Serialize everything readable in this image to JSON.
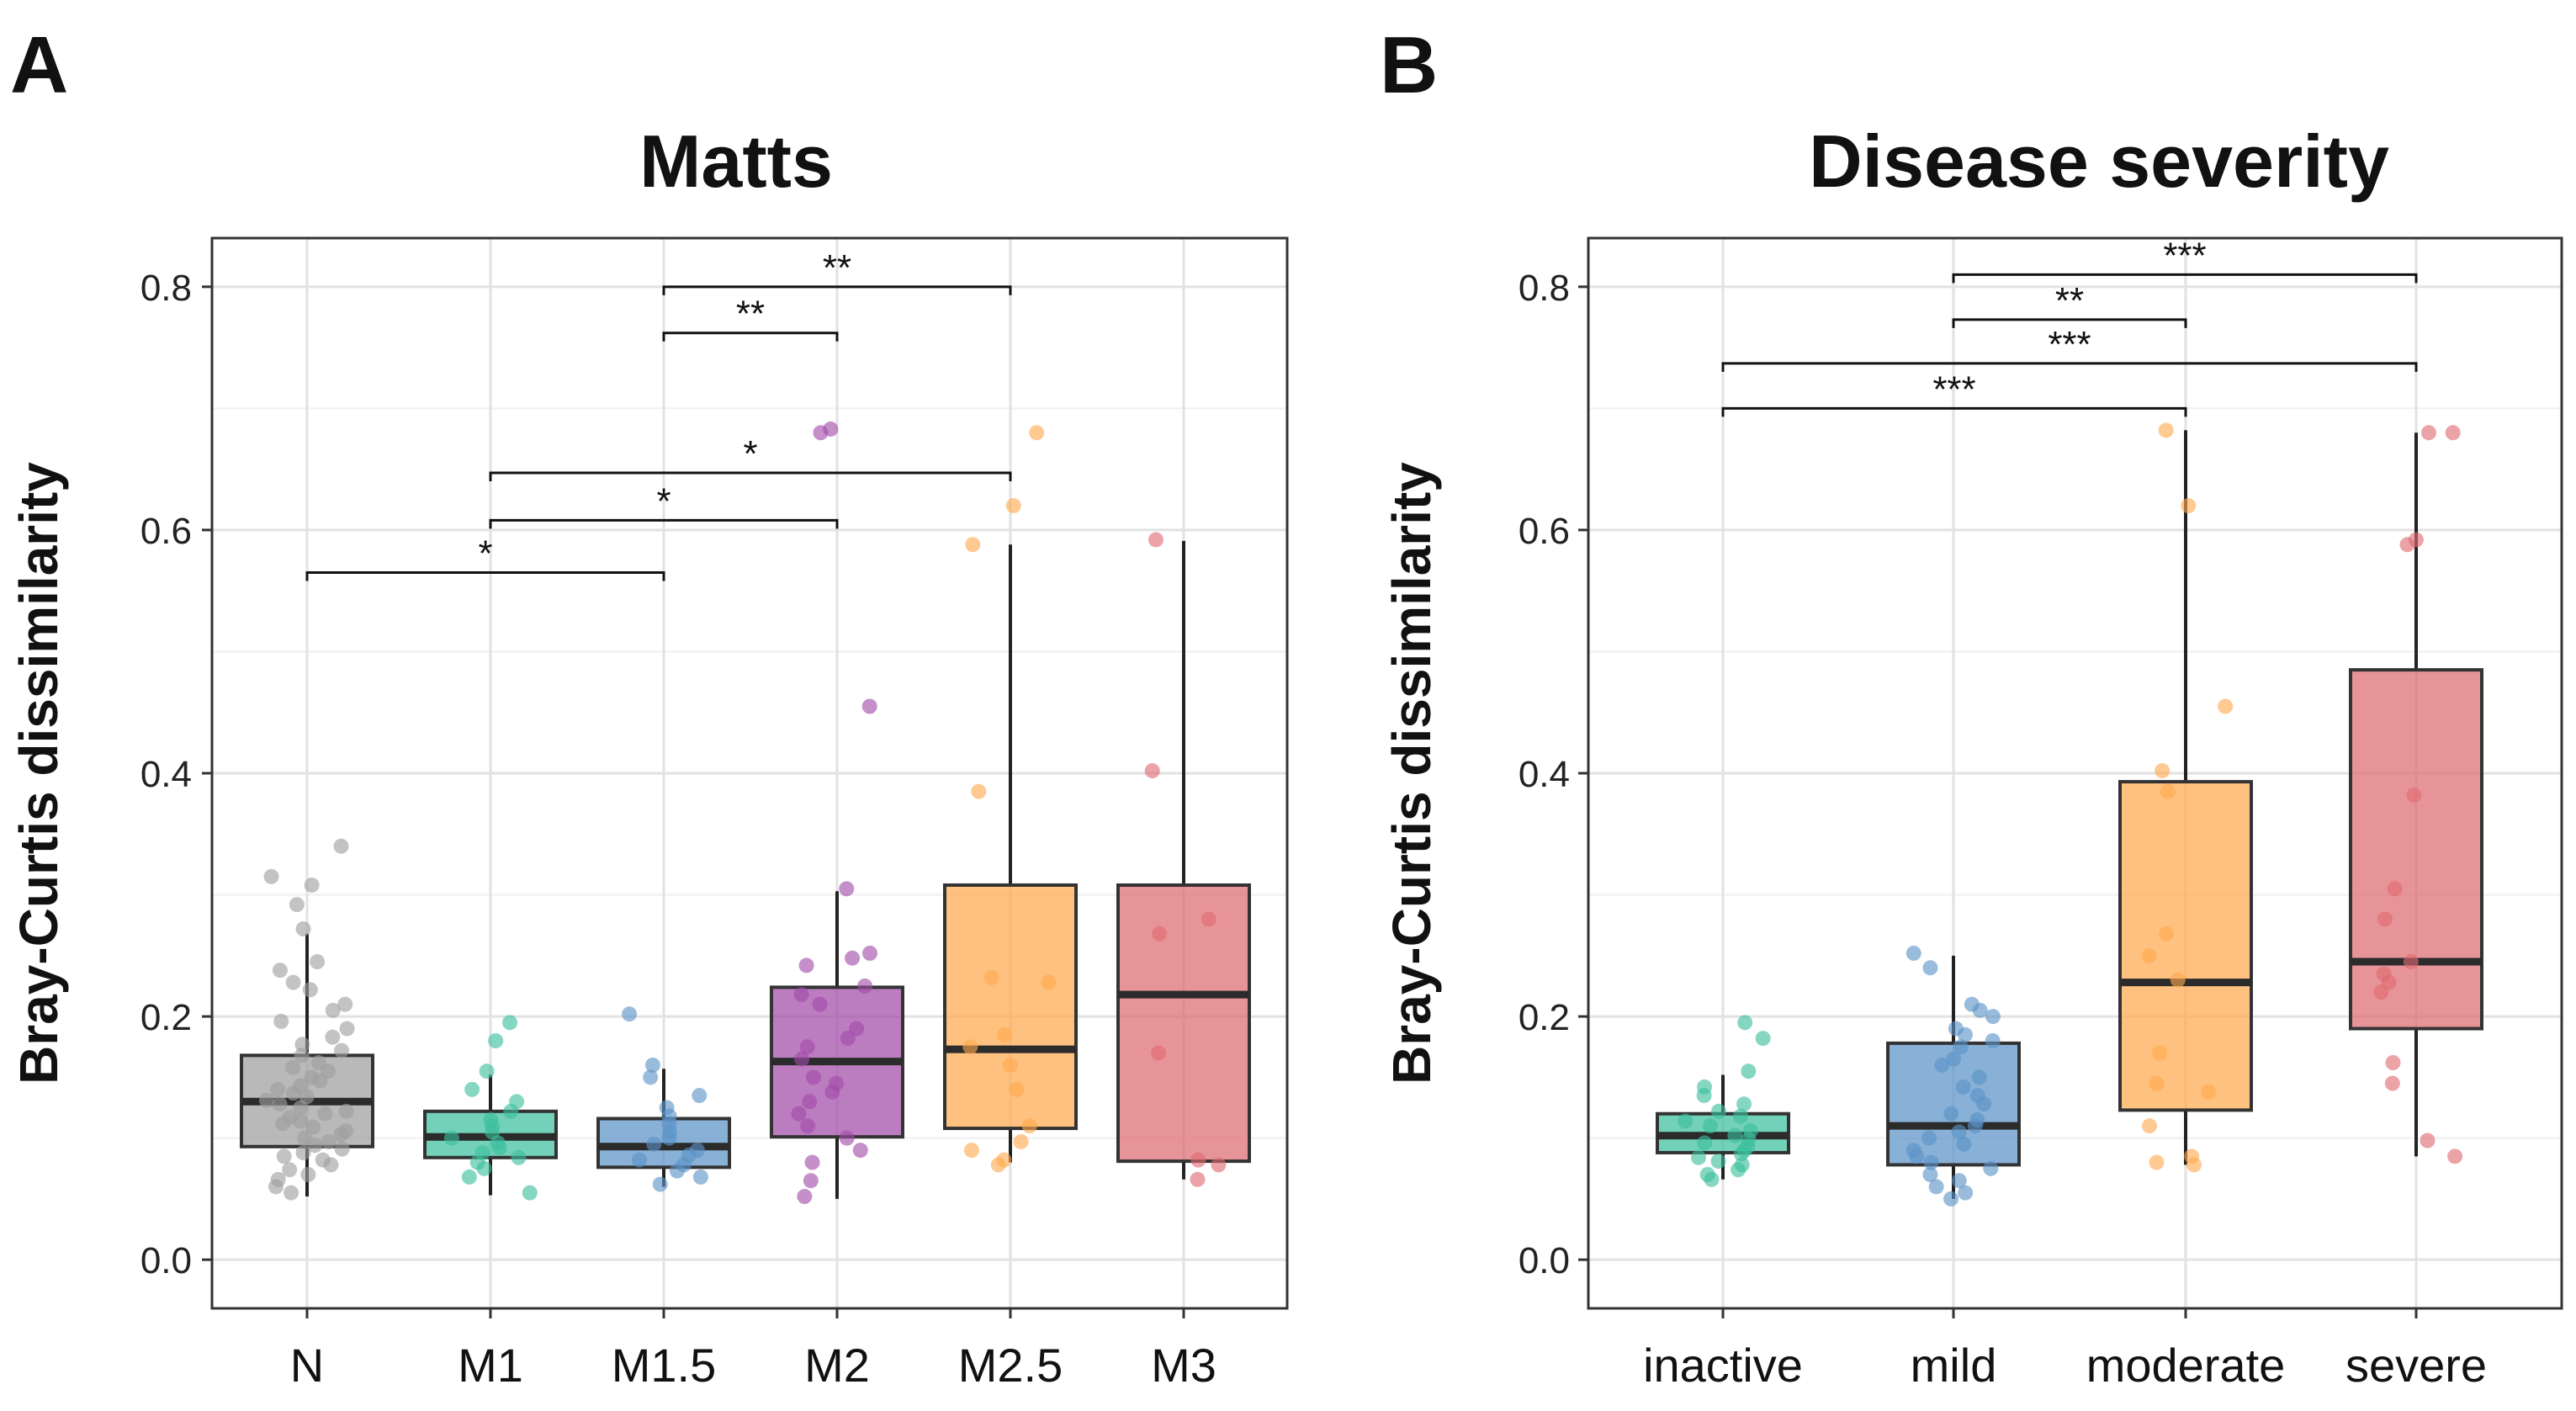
{
  "figure": {
    "description": "Two-panel boxplot figure of Bray-Curtis dissimilarity"
  },
  "chart_data": [
    {
      "panel_label": "A",
      "type": "box",
      "title": "Matts",
      "xlabel": "",
      "ylabel": "Bray-Curtis dissimilarity",
      "ylim": [
        -0.04,
        0.84
      ],
      "yticks": [
        0.0,
        0.2,
        0.4,
        0.6,
        0.8
      ],
      "ytick_labels": [
        "0.0",
        "0.2",
        "0.4",
        "0.6",
        "0.8"
      ],
      "grid": true,
      "categories": [
        "N",
        "M1",
        "M1.5",
        "M2",
        "M2.5",
        "M3"
      ],
      "boxes": [
        {
          "category": "N",
          "color": "#9e9e9e",
          "q1": 0.093,
          "median": 0.13,
          "q3": 0.168,
          "whisker_low": 0.052,
          "whisker_high": 0.268
        },
        {
          "category": "M1",
          "color": "#3bbf9c",
          "q1": 0.084,
          "median": 0.101,
          "q3": 0.122,
          "whisker_low": 0.053,
          "whisker_high": 0.152
        },
        {
          "category": "M1.5",
          "color": "#5b93c7",
          "q1": 0.076,
          "median": 0.093,
          "q3": 0.116,
          "whisker_low": 0.06,
          "whisker_high": 0.157
        },
        {
          "category": "M2",
          "color": "#a24aa8",
          "q1": 0.101,
          "median": 0.163,
          "q3": 0.224,
          "whisker_low": 0.05,
          "whisker_high": 0.303
        },
        {
          "category": "M2.5",
          "color": "#ffa94d",
          "q1": 0.108,
          "median": 0.173,
          "q3": 0.308,
          "whisker_low": 0.08,
          "whisker_high": 0.588
        },
        {
          "category": "M3",
          "color": "#de6b71",
          "q1": 0.081,
          "median": 0.218,
          "q3": 0.308,
          "whisker_low": 0.066,
          "whisker_high": 0.591
        }
      ],
      "points": [
        {
          "category": "N",
          "values": [
            0.34,
            0.315,
            0.308,
            0.292,
            0.272,
            0.245,
            0.238,
            0.228,
            0.222,
            0.21,
            0.205,
            0.196,
            0.19,
            0.183,
            0.177,
            0.172,
            0.168,
            0.162,
            0.158,
            0.155,
            0.15,
            0.147,
            0.143,
            0.14,
            0.137,
            0.134,
            0.131,
            0.128,
            0.125,
            0.122,
            0.12,
            0.117,
            0.114,
            0.112,
            0.109,
            0.106,
            0.103,
            0.1,
            0.097,
            0.094,
            0.091,
            0.088,
            0.085,
            0.082,
            0.078,
            0.074,
            0.07,
            0.066,
            0.06,
            0.055
          ]
        },
        {
          "category": "M1",
          "values": [
            0.195,
            0.18,
            0.155,
            0.14,
            0.13,
            0.122,
            0.115,
            0.11,
            0.105,
            0.1,
            0.096,
            0.092,
            0.088,
            0.084,
            0.08,
            0.075,
            0.068,
            0.055
          ]
        },
        {
          "category": "M1.5",
          "values": [
            0.202,
            0.16,
            0.15,
            0.135,
            0.125,
            0.118,
            0.112,
            0.105,
            0.1,
            0.095,
            0.09,
            0.086,
            0.082,
            0.078,
            0.073,
            0.068,
            0.062
          ]
        },
        {
          "category": "M2",
          "values": [
            0.683,
            0.68,
            0.455,
            0.305,
            0.252,
            0.248,
            0.242,
            0.225,
            0.218,
            0.21,
            0.19,
            0.182,
            0.175,
            0.165,
            0.15,
            0.145,
            0.138,
            0.13,
            0.12,
            0.11,
            0.1,
            0.09,
            0.08,
            0.065,
            0.052
          ]
        },
        {
          "category": "M2.5",
          "values": [
            0.68,
            0.62,
            0.588,
            0.385,
            0.232,
            0.228,
            0.185,
            0.175,
            0.16,
            0.14,
            0.11,
            0.097,
            0.09,
            0.082,
            0.078
          ]
        },
        {
          "category": "M3",
          "values": [
            0.592,
            0.402,
            0.28,
            0.268,
            0.17,
            0.082,
            0.078,
            0.066
          ]
        }
      ],
      "significance": [
        {
          "from": "N",
          "to": "M1.5",
          "y": 0.565,
          "label": "*"
        },
        {
          "from": "M1",
          "to": "M2",
          "y": 0.608,
          "label": "*"
        },
        {
          "from": "M1",
          "to": "M2.5",
          "y": 0.647,
          "label": "*"
        },
        {
          "from": "M1.5",
          "to": "M2",
          "y": 0.762,
          "label": "**"
        },
        {
          "from": "M1.5",
          "to": "M2.5",
          "y": 0.8,
          "label": "**"
        }
      ]
    },
    {
      "panel_label": "B",
      "type": "box",
      "title": "Disease severity",
      "xlabel": "",
      "ylabel": "Bray-Curtis dissimilarity",
      "ylim": [
        -0.04,
        0.84
      ],
      "yticks": [
        0.0,
        0.2,
        0.4,
        0.6,
        0.8
      ],
      "ytick_labels": [
        "0.0",
        "0.2",
        "0.4",
        "0.6",
        "0.8"
      ],
      "grid": true,
      "categories": [
        "inactive",
        "mild",
        "moderate",
        "severe"
      ],
      "boxes": [
        {
          "category": "inactive",
          "color": "#3bbf9c",
          "q1": 0.088,
          "median": 0.102,
          "q3": 0.12,
          "whisker_low": 0.066,
          "whisker_high": 0.152
        },
        {
          "category": "mild",
          "color": "#5b93c7",
          "q1": 0.078,
          "median": 0.11,
          "q3": 0.178,
          "whisker_low": 0.05,
          "whisker_high": 0.25
        },
        {
          "category": "moderate",
          "color": "#ffa94d",
          "q1": 0.123,
          "median": 0.228,
          "q3": 0.393,
          "whisker_low": 0.078,
          "whisker_high": 0.682
        },
        {
          "category": "severe",
          "color": "#de6b71",
          "q1": 0.19,
          "median": 0.245,
          "q3": 0.485,
          "whisker_low": 0.085,
          "whisker_high": 0.68
        }
      ],
      "points": [
        {
          "category": "inactive",
          "values": [
            0.195,
            0.182,
            0.155,
            0.142,
            0.135,
            0.128,
            0.122,
            0.118,
            0.114,
            0.11,
            0.106,
            0.102,
            0.099,
            0.096,
            0.093,
            0.09,
            0.087,
            0.084,
            0.081,
            0.078,
            0.074,
            0.07,
            0.066
          ]
        },
        {
          "category": "mild",
          "values": [
            0.252,
            0.24,
            0.21,
            0.205,
            0.2,
            0.19,
            0.185,
            0.18,
            0.175,
            0.165,
            0.16,
            0.15,
            0.142,
            0.135,
            0.128,
            0.12,
            0.115,
            0.11,
            0.105,
            0.1,
            0.095,
            0.09,
            0.085,
            0.08,
            0.075,
            0.07,
            0.065,
            0.06,
            0.055,
            0.05
          ]
        },
        {
          "category": "moderate",
          "values": [
            0.682,
            0.62,
            0.455,
            0.402,
            0.385,
            0.268,
            0.25,
            0.23,
            0.17,
            0.145,
            0.138,
            0.11,
            0.085,
            0.08,
            0.078
          ]
        },
        {
          "category": "severe",
          "values": [
            0.68,
            0.68,
            0.592,
            0.588,
            0.382,
            0.305,
            0.28,
            0.245,
            0.235,
            0.228,
            0.22,
            0.162,
            0.145,
            0.098,
            0.085
          ]
        }
      ],
      "significance": [
        {
          "from": "inactive",
          "to": "moderate",
          "y": 0.7,
          "label": "***"
        },
        {
          "from": "inactive",
          "to": "severe",
          "y": 0.737,
          "label": "***"
        },
        {
          "from": "mild",
          "to": "moderate",
          "y": 0.773,
          "label": "**"
        },
        {
          "from": "mild",
          "to": "severe",
          "y": 0.81,
          "label": "***"
        }
      ]
    }
  ]
}
